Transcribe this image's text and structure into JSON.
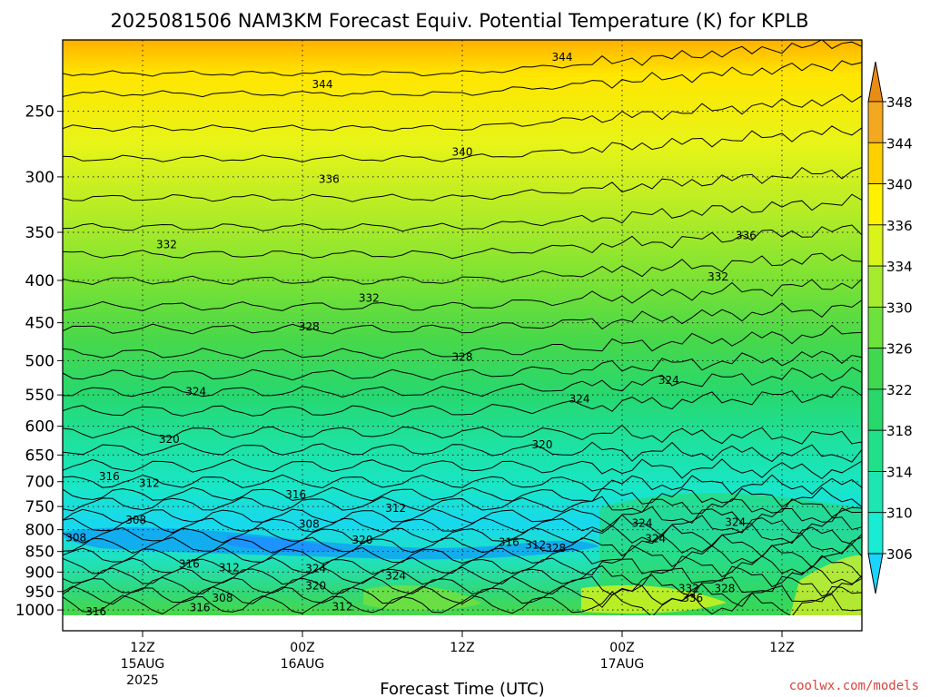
{
  "chart_data": {
    "type": "heatmap",
    "title": "2025081506 NAM3KM Forecast Equiv. Potential Temperature (K) for KPLB",
    "xlabel": "Forecast Time (UTC)",
    "ylabel": "",
    "x_ticks": [
      {
        "lines": [
          "12Z",
          "15AUG",
          "2025"
        ]
      },
      {
        "lines": [
          "00Z",
          "16AUG"
        ]
      },
      {
        "lines": [
          "12Z"
        ]
      },
      {
        "lines": [
          "00Z",
          "17AUG"
        ]
      },
      {
        "lines": [
          "12Z"
        ]
      }
    ],
    "x_tick_hours": [
      0,
      12,
      24,
      36,
      48
    ],
    "x_range_hours": [
      -6,
      54
    ],
    "y_ticks": [
      250,
      300,
      350,
      400,
      450,
      500,
      550,
      600,
      650,
      700,
      750,
      800,
      850,
      900,
      950,
      1000
    ],
    "y_range_hpa": [
      205,
      1015
    ],
    "y_scale": "log",
    "grid": true,
    "colorbar": {
      "labels": [
        306,
        310,
        314,
        318,
        322,
        326,
        330,
        334,
        336,
        340,
        344,
        348
      ],
      "colors": [
        "#18d4ff",
        "#18ecd2",
        "#1ee6b2",
        "#22e08a",
        "#28d86a",
        "#40d850",
        "#6ee23c",
        "#a6ec2e",
        "#d8f418",
        "#fff200",
        "#ffd000",
        "#f4a820",
        "#e98c14"
      ],
      "extend": "both"
    },
    "contour_labels": [
      {
        "value": "344",
        "x": 31.5,
        "p": 215
      },
      {
        "value": "344",
        "x": 13.5,
        "p": 232
      },
      {
        "value": "340",
        "x": 24.0,
        "p": 280
      },
      {
        "value": "336",
        "x": 14.0,
        "p": 302
      },
      {
        "value": "336",
        "x": 45.3,
        "p": 353
      },
      {
        "value": "332",
        "x": 1.8,
        "p": 362
      },
      {
        "value": "332",
        "x": 43.2,
        "p": 396
      },
      {
        "value": "332",
        "x": 17.0,
        "p": 420
      },
      {
        "value": "328",
        "x": 12.5,
        "p": 455
      },
      {
        "value": "328",
        "x": 24.0,
        "p": 495
      },
      {
        "value": "324",
        "x": 4.0,
        "p": 545
      },
      {
        "value": "324",
        "x": 39.5,
        "p": 528
      },
      {
        "value": "324",
        "x": 32.8,
        "p": 556
      },
      {
        "value": "320",
        "x": 2.0,
        "p": 622
      },
      {
        "value": "320",
        "x": 30.0,
        "p": 632
      },
      {
        "value": "316",
        "x": -2.5,
        "p": 690
      },
      {
        "value": "312",
        "x": 0.5,
        "p": 703
      },
      {
        "value": "316",
        "x": 11.5,
        "p": 726
      },
      {
        "value": "312",
        "x": 19.0,
        "p": 754
      },
      {
        "value": "308",
        "x": -0.5,
        "p": 779
      },
      {
        "value": "308",
        "x": 12.5,
        "p": 788
      },
      {
        "value": "308",
        "x": -5.0,
        "p": 818
      },
      {
        "value": "324",
        "x": 37.5,
        "p": 786
      },
      {
        "value": "324",
        "x": 44.5,
        "p": 784
      },
      {
        "value": "324",
        "x": 38.5,
        "p": 820
      },
      {
        "value": "320",
        "x": 16.5,
        "p": 823
      },
      {
        "value": "316",
        "x": 27.5,
        "p": 828
      },
      {
        "value": "312",
        "x": 29.5,
        "p": 835
      },
      {
        "value": "328",
        "x": 31.0,
        "p": 842
      },
      {
        "value": "316",
        "x": 3.5,
        "p": 880
      },
      {
        "value": "312",
        "x": 6.5,
        "p": 889
      },
      {
        "value": "324",
        "x": 13.0,
        "p": 891
      },
      {
        "value": "324",
        "x": 19.0,
        "p": 909
      },
      {
        "value": "320",
        "x": 13.0,
        "p": 935
      },
      {
        "value": "332",
        "x": 41.0,
        "p": 942
      },
      {
        "value": "328",
        "x": 43.7,
        "p": 942
      },
      {
        "value": "336",
        "x": 41.3,
        "p": 967
      },
      {
        "value": "308",
        "x": 6.0,
        "p": 967
      },
      {
        "value": "316",
        "x": 4.3,
        "p": 994
      },
      {
        "value": "312",
        "x": 15.0,
        "p": 991
      },
      {
        "value": "316",
        "x": -3.5,
        "p": 1005
      }
    ],
    "terrain_color": "#a0522d"
  },
  "credit": "coolwx.com/models"
}
